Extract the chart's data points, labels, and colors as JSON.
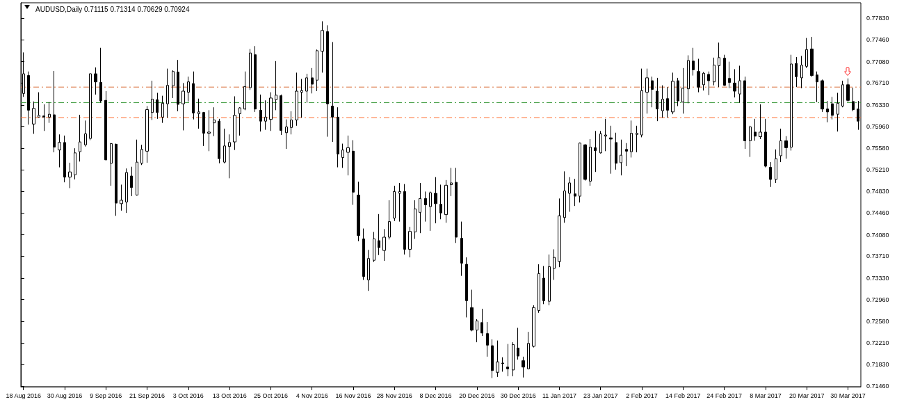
{
  "chart_data": {
    "type": "candlestick",
    "title": "AUDUSD,Daily 0.71115 0.71314 0.70629 0.70924",
    "categories": [
      "18 Aug 2016",
      null,
      null,
      null,
      null,
      null,
      null,
      null,
      "30 Aug 2016",
      null,
      null,
      null,
      null,
      null,
      null,
      null,
      "9 Sep 2016",
      null,
      null,
      null,
      null,
      null,
      null,
      null,
      "21 Sep 2016",
      null,
      null,
      null,
      null,
      null,
      null,
      null,
      "3 Oct 2016",
      null,
      null,
      null,
      null,
      null,
      null,
      null,
      "13 Oct 2016",
      null,
      null,
      null,
      null,
      null,
      null,
      null,
      "25 Oct 2016",
      null,
      null,
      null,
      null,
      null,
      null,
      null,
      "4 Nov 2016",
      null,
      null,
      null,
      null,
      null,
      null,
      null,
      "16 Nov 2016",
      null,
      null,
      null,
      null,
      null,
      null,
      null,
      "28 Nov 2016",
      null,
      null,
      null,
      null,
      null,
      null,
      null,
      "8 Dec 2016",
      null,
      null,
      null,
      null,
      null,
      null,
      null,
      "20 Dec 2016",
      null,
      null,
      null,
      null,
      null,
      null,
      null,
      "30 Dec 2016",
      null,
      null,
      null,
      null,
      null,
      null,
      null,
      "11 Jan 2017",
      null,
      null,
      null,
      null,
      null,
      null,
      null,
      "23 Jan 2017",
      null,
      null,
      null,
      null,
      null,
      null,
      null,
      "2 Feb 2017",
      null,
      null,
      null,
      null,
      null,
      null,
      null,
      "14 Feb 2017",
      null,
      null,
      null,
      null,
      null,
      null,
      null,
      "24 Feb 2017",
      null,
      null,
      null,
      null,
      null,
      null,
      null,
      "8 Mar 2017",
      null,
      null,
      null,
      null,
      null,
      null,
      null,
      "20 Mar 2017",
      null,
      null,
      null,
      null,
      null,
      null,
      null,
      "30 Mar 2017",
      null,
      null
    ],
    "ohlc": [
      [
        0.7653,
        0.7724,
        0.7647,
        0.7687
      ],
      [
        0.7684,
        0.7691,
        0.7599,
        0.7624
      ],
      [
        0.76,
        0.7639,
        0.7583,
        0.7627
      ],
      [
        0.7612,
        0.7655,
        0.7612,
        0.7615
      ],
      [
        0.7614,
        0.7634,
        0.7588,
        0.7612
      ],
      [
        0.7612,
        0.7638,
        0.7602,
        0.7617
      ],
      [
        0.7616,
        0.7692,
        0.7551,
        0.756
      ],
      [
        0.7555,
        0.7582,
        0.7525,
        0.7568
      ],
      [
        0.7568,
        0.758,
        0.7499,
        0.7508
      ],
      [
        0.7508,
        0.7533,
        0.7489,
        0.7517
      ],
      [
        0.7512,
        0.7558,
        0.7504,
        0.755
      ],
      [
        0.7552,
        0.7616,
        0.7535,
        0.7569
      ],
      [
        0.7564,
        0.7606,
        0.7561,
        0.7583
      ],
      [
        0.7575,
        0.7688,
        0.7572,
        0.7687
      ],
      [
        0.7687,
        0.7698,
        0.7651,
        0.7673
      ],
      [
        0.7672,
        0.7732,
        0.7637,
        0.764
      ],
      [
        0.7641,
        0.7657,
        0.7537,
        0.7538
      ],
      [
        0.7532,
        0.7567,
        0.7493,
        0.7566
      ],
      [
        0.7565,
        0.7566,
        0.7441,
        0.7463
      ],
      [
        0.7462,
        0.7495,
        0.745,
        0.7468
      ],
      [
        0.7465,
        0.7523,
        0.7446,
        0.7516
      ],
      [
        0.751,
        0.7526,
        0.7475,
        0.749
      ],
      [
        0.7477,
        0.7573,
        0.7476,
        0.7534
      ],
      [
        0.7532,
        0.7564,
        0.7529,
        0.7556
      ],
      [
        0.7553,
        0.7631,
        0.7533,
        0.7625
      ],
      [
        0.762,
        0.7675,
        0.7607,
        0.7643
      ],
      [
        0.7642,
        0.7654,
        0.7609,
        0.762
      ],
      [
        0.7612,
        0.7649,
        0.7602,
        0.7636
      ],
      [
        0.7635,
        0.7696,
        0.7611,
        0.7667
      ],
      [
        0.7666,
        0.7693,
        0.7645,
        0.7691
      ],
      [
        0.769,
        0.7711,
        0.7622,
        0.7634
      ],
      [
        0.7635,
        0.7671,
        0.7589,
        0.7657
      ],
      [
        0.7655,
        0.7682,
        0.7639,
        0.7673
      ],
      [
        0.767,
        0.7691,
        0.7608,
        0.7619
      ],
      [
        0.7618,
        0.7644,
        0.7592,
        0.7621
      ],
      [
        0.762,
        0.7621,
        0.7562,
        0.7584
      ],
      [
        0.7584,
        0.7624,
        0.7553,
        0.7586
      ],
      [
        0.7602,
        0.7629,
        0.7579,
        0.7607
      ],
      [
        0.7605,
        0.7609,
        0.7532,
        0.754
      ],
      [
        0.7534,
        0.7592,
        0.7532,
        0.7562
      ],
      [
        0.7561,
        0.7582,
        0.7506,
        0.7568
      ],
      [
        0.7569,
        0.7648,
        0.7555,
        0.7615
      ],
      [
        0.7618,
        0.7629,
        0.758,
        0.7628
      ],
      [
        0.7626,
        0.7691,
        0.7624,
        0.7665
      ],
      [
        0.7663,
        0.773,
        0.7659,
        0.7723
      ],
      [
        0.772,
        0.7735,
        0.7621,
        0.7626
      ],
      [
        0.7624,
        0.7651,
        0.7587,
        0.7605
      ],
      [
        0.7605,
        0.7641,
        0.759,
        0.7612
      ],
      [
        0.7608,
        0.7655,
        0.7588,
        0.7645
      ],
      [
        0.7642,
        0.7709,
        0.7624,
        0.765
      ],
      [
        0.7649,
        0.7651,
        0.7581,
        0.7589
      ],
      [
        0.7585,
        0.7608,
        0.7557,
        0.7595
      ],
      [
        0.7594,
        0.7622,
        0.7582,
        0.7607
      ],
      [
        0.7607,
        0.7689,
        0.7597,
        0.7657
      ],
      [
        0.7655,
        0.7678,
        0.7611,
        0.7658
      ],
      [
        0.7657,
        0.7687,
        0.7637,
        0.768
      ],
      [
        0.768,
        0.7697,
        0.7653,
        0.7669
      ],
      [
        0.7676,
        0.7729,
        0.7657,
        0.7727
      ],
      [
        0.7726,
        0.7778,
        0.7689,
        0.7762
      ],
      [
        0.776,
        0.7771,
        0.7578,
        0.7635
      ],
      [
        0.7631,
        0.7742,
        0.7569,
        0.7612
      ],
      [
        0.7612,
        0.7629,
        0.7525,
        0.7548
      ],
      [
        0.7542,
        0.7566,
        0.7524,
        0.7555
      ],
      [
        0.7551,
        0.758,
        0.7511,
        0.7559
      ],
      [
        0.7553,
        0.7572,
        0.746,
        0.7482
      ],
      [
        0.7477,
        0.75,
        0.7397,
        0.7407
      ],
      [
        0.7401,
        0.7419,
        0.733,
        0.7336
      ],
      [
        0.733,
        0.7382,
        0.7311,
        0.7367
      ],
      [
        0.7364,
        0.7413,
        0.7361,
        0.7401
      ],
      [
        0.7398,
        0.7444,
        0.7373,
        0.7386
      ],
      [
        0.7381,
        0.7418,
        0.7363,
        0.7404
      ],
      [
        0.7404,
        0.7468,
        0.74,
        0.7431
      ],
      [
        0.7437,
        0.7493,
        0.7432,
        0.7483
      ],
      [
        0.748,
        0.7498,
        0.7431,
        0.7483
      ],
      [
        0.7483,
        0.7496,
        0.7374,
        0.7383
      ],
      [
        0.7383,
        0.7422,
        0.7369,
        0.7414
      ],
      [
        0.7413,
        0.7468,
        0.7401,
        0.7453
      ],
      [
        0.7447,
        0.7498,
        0.7411,
        0.7471
      ],
      [
        0.7471,
        0.7483,
        0.7431,
        0.746
      ],
      [
        0.7457,
        0.7483,
        0.7415,
        0.7481
      ],
      [
        0.748,
        0.7508,
        0.7428,
        0.7462
      ],
      [
        0.7461,
        0.7495,
        0.7435,
        0.7446
      ],
      [
        0.7443,
        0.7503,
        0.7429,
        0.7494
      ],
      [
        0.7495,
        0.7524,
        0.7475,
        0.7498
      ],
      [
        0.7499,
        0.7524,
        0.7394,
        0.7404
      ],
      [
        0.7402,
        0.7431,
        0.7337,
        0.7359
      ],
      [
        0.7357,
        0.7369,
        0.7265,
        0.7294
      ],
      [
        0.7282,
        0.7313,
        0.7241,
        0.7243
      ],
      [
        0.7243,
        0.7262,
        0.7222,
        0.7259
      ],
      [
        0.7256,
        0.728,
        0.7233,
        0.7238
      ],
      [
        0.7237,
        0.7257,
        0.7197,
        0.7217
      ],
      [
        0.7216,
        0.7227,
        0.716,
        0.7173
      ],
      [
        0.717,
        0.7225,
        0.7162,
        0.7188
      ],
      [
        0.7186,
        0.7196,
        0.7171,
        0.7185
      ],
      [
        0.7179,
        0.7219,
        0.7163,
        0.7176
      ],
      [
        0.7174,
        0.7222,
        0.7163,
        0.7218
      ],
      [
        0.7212,
        0.7247,
        0.7192,
        0.7198
      ],
      [
        0.719,
        0.7197,
        0.7161,
        0.7179
      ],
      [
        0.7176,
        0.724,
        0.7175,
        0.722
      ],
      [
        0.7215,
        0.7286,
        0.7213,
        0.7282
      ],
      [
        0.7277,
        0.7357,
        0.7273,
        0.7341
      ],
      [
        0.7333,
        0.7354,
        0.7288,
        0.7294
      ],
      [
        0.7293,
        0.7374,
        0.7286,
        0.7353
      ],
      [
        0.735,
        0.7383,
        0.733,
        0.7369
      ],
      [
        0.7362,
        0.7471,
        0.7352,
        0.7441
      ],
      [
        0.7438,
        0.7518,
        0.7429,
        0.7484
      ],
      [
        0.748,
        0.7508,
        0.7448,
        0.7498
      ],
      [
        0.7479,
        0.7505,
        0.7458,
        0.7475
      ],
      [
        0.7475,
        0.7568,
        0.7464,
        0.7567
      ],
      [
        0.7564,
        0.7565,
        0.7502,
        0.7504
      ],
      [
        0.7501,
        0.7574,
        0.7493,
        0.756
      ],
      [
        0.7559,
        0.7588,
        0.7517,
        0.7554
      ],
      [
        0.755,
        0.7588,
        0.7549,
        0.7583
      ],
      [
        0.7579,
        0.7609,
        0.7553,
        0.7581
      ],
      [
        0.7576,
        0.7597,
        0.7514,
        0.7574
      ],
      [
        0.7568,
        0.7585,
        0.7521,
        0.7532
      ],
      [
        0.7533,
        0.7573,
        0.7511,
        0.7546
      ],
      [
        0.7556,
        0.7567,
        0.7527,
        0.7553
      ],
      [
        0.7552,
        0.7606,
        0.7542,
        0.7584
      ],
      [
        0.7582,
        0.7597,
        0.7551,
        0.7584
      ],
      [
        0.7581,
        0.7696,
        0.7577,
        0.7658
      ],
      [
        0.7655,
        0.7696,
        0.7618,
        0.768
      ],
      [
        0.7675,
        0.7682,
        0.7629,
        0.766
      ],
      [
        0.7657,
        0.768,
        0.7605,
        0.7626
      ],
      [
        0.7623,
        0.7667,
        0.7611,
        0.7643
      ],
      [
        0.7644,
        0.7664,
        0.7611,
        0.7624
      ],
      [
        0.7621,
        0.7689,
        0.7617,
        0.7674
      ],
      [
        0.7675,
        0.768,
        0.7631,
        0.764
      ],
      [
        0.7638,
        0.7697,
        0.7618,
        0.7662
      ],
      [
        0.7661,
        0.7719,
        0.7636,
        0.771
      ],
      [
        0.7709,
        0.7732,
        0.7684,
        0.7694
      ],
      [
        0.7691,
        0.7713,
        0.7655,
        0.7664
      ],
      [
        0.7668,
        0.769,
        0.7658,
        0.7688
      ],
      [
        0.7686,
        0.7691,
        0.765,
        0.7675
      ],
      [
        0.7673,
        0.7715,
        0.7667,
        0.7702
      ],
      [
        0.7701,
        0.7741,
        0.7664,
        0.7715
      ],
      [
        0.7714,
        0.772,
        0.7666,
        0.7667
      ],
      [
        0.7679,
        0.7708,
        0.7662,
        0.7672
      ],
      [
        0.7671,
        0.7695,
        0.7646,
        0.7657
      ],
      [
        0.7652,
        0.7701,
        0.7637,
        0.7675
      ],
      [
        0.7675,
        0.7682,
        0.7557,
        0.7571
      ],
      [
        0.7571,
        0.7597,
        0.7543,
        0.7595
      ],
      [
        0.7586,
        0.7609,
        0.7571,
        0.7579
      ],
      [
        0.7578,
        0.7634,
        0.7574,
        0.7586
      ],
      [
        0.7586,
        0.7609,
        0.7525,
        0.7527
      ],
      [
        0.7525,
        0.7534,
        0.7491,
        0.7504
      ],
      [
        0.7504,
        0.7556,
        0.7498,
        0.754
      ],
      [
        0.7545,
        0.7592,
        0.7534,
        0.7571
      ],
      [
        0.7571,
        0.7579,
        0.754,
        0.7559
      ],
      [
        0.756,
        0.772,
        0.7554,
        0.7704
      ],
      [
        0.7705,
        0.7716,
        0.7664,
        0.7682
      ],
      [
        0.768,
        0.7718,
        0.7662,
        0.7702
      ],
      [
        0.77,
        0.7749,
        0.7697,
        0.7729
      ],
      [
        0.773,
        0.7751,
        0.7682,
        0.7684
      ],
      [
        0.7685,
        0.7691,
        0.7638,
        0.7673
      ],
      [
        0.7675,
        0.7677,
        0.7621,
        0.7626
      ],
      [
        0.7626,
        0.764,
        0.7603,
        0.7621
      ],
      [
        0.7635,
        0.7647,
        0.7608,
        0.7615
      ],
      [
        0.7617,
        0.7654,
        0.7587,
        0.7636
      ],
      [
        0.7631,
        0.7675,
        0.7629,
        0.7668
      ],
      [
        0.7668,
        0.7679,
        0.7639,
        0.7641
      ],
      [
        0.7639,
        0.7663,
        0.7622,
        0.7625
      ],
      [
        0.7626,
        0.764,
        0.759,
        0.7605
      ]
    ],
    "ylim": [
      0.7145,
      0.781
    ],
    "yticks": [
      {
        "value": 0.7146,
        "label": "0.71460"
      },
      {
        "value": 0.7183,
        "label": "0.71830"
      },
      {
        "value": 0.7221,
        "label": "0.72210"
      },
      {
        "value": 0.7258,
        "label": "0.72580"
      },
      {
        "value": 0.7296,
        "label": "0.72960"
      },
      {
        "value": 0.7333,
        "label": "0.73330"
      },
      {
        "value": 0.7371,
        "label": "0.73710"
      },
      {
        "value": 0.7408,
        "label": "0.74080"
      },
      {
        "value": 0.7446,
        "label": "0.74460"
      },
      {
        "value": 0.7483,
        "label": "0.74830"
      },
      {
        "value": 0.7521,
        "label": "0.75210"
      },
      {
        "value": 0.7558,
        "label": "0.75580"
      },
      {
        "value": 0.7596,
        "label": "0.75960"
      },
      {
        "value": 0.7633,
        "label": "0.76330"
      },
      {
        "value": 0.7671,
        "label": "0.76710"
      },
      {
        "value": 0.7708,
        "label": "0.77080"
      },
      {
        "value": 0.7746,
        "label": "0.77460"
      },
      {
        "value": 0.7783,
        "label": "0.77830"
      }
    ],
    "ref_lines": [
      {
        "axis": "y",
        "value": 0.7664,
        "color": "#d9703c",
        "line_style": "dashed"
      },
      {
        "axis": "y",
        "value": 0.7637,
        "color": "#3c9a3c",
        "line_style": "dashed"
      },
      {
        "axis": "y",
        "value": 0.7611,
        "color": "#ff6a2a",
        "line_style": "dashed"
      }
    ],
    "grid": false
  }
}
